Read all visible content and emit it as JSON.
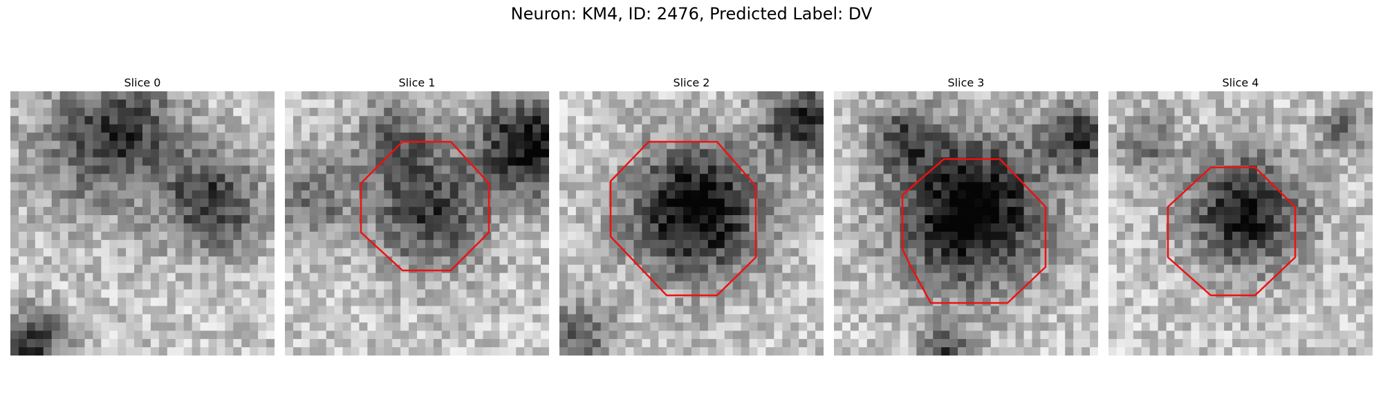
{
  "figure": {
    "title": "Neuron: KM4, ID: 2476, Predicted Label: DV",
    "outline_color": "#ee1111"
  },
  "panels": [
    {
      "title": "Slice 0"
    },
    {
      "title": "Slice 1"
    },
    {
      "title": "Slice 2"
    },
    {
      "title": "Slice 3"
    },
    {
      "title": "Slice 4"
    }
  ]
}
